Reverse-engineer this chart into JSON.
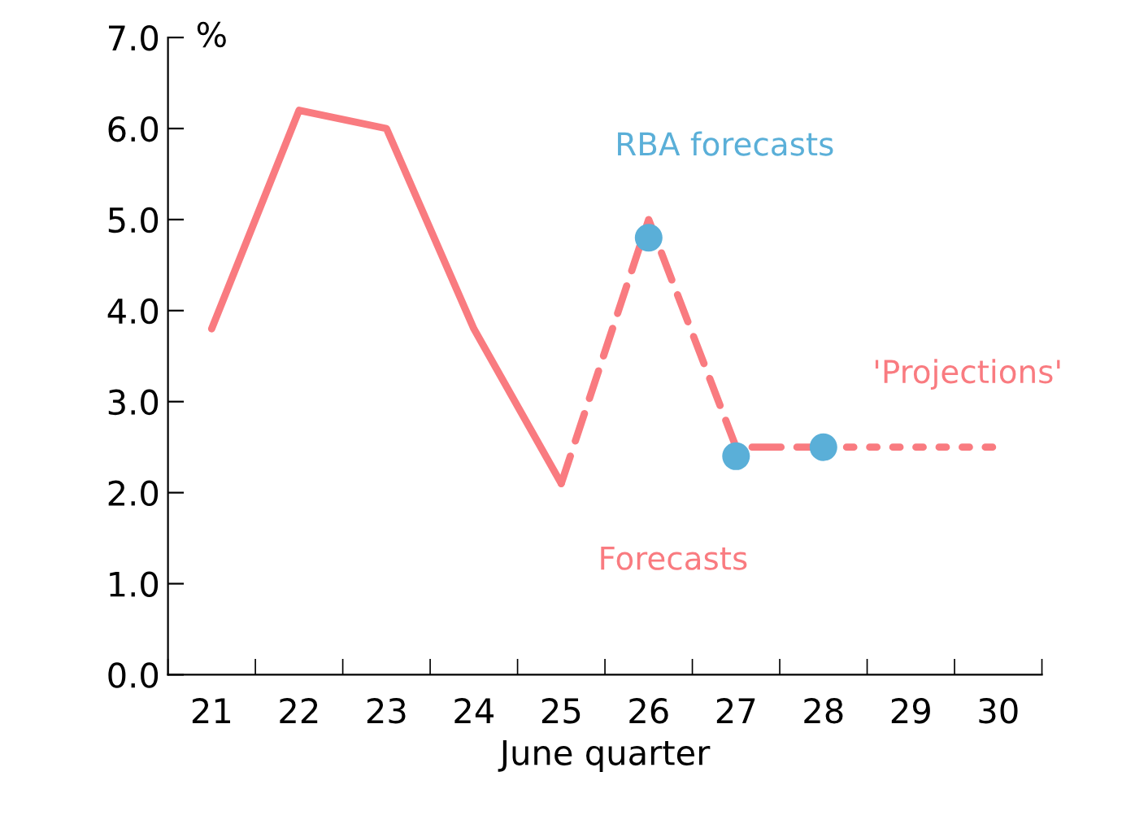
{
  "chart_data": {
    "type": "line",
    "xlabel": "June quarter",
    "ylabel": "%",
    "categories": [
      "21",
      "22",
      "23",
      "24",
      "25",
      "26",
      "27",
      "28",
      "29",
      "30"
    ],
    "series": [
      {
        "color": "#f97b80",
        "line_style": "solid",
        "values": [
          3.8,
          6.2,
          6.0,
          3.8,
          2.1,
          null,
          null,
          null,
          null,
          null
        ]
      },
      {
        "name": "Forecasts",
        "color": "#f97b80",
        "line_style": "dashed",
        "values": [
          null,
          null,
          null,
          null,
          2.1,
          5.0,
          2.5,
          2.5,
          null,
          null
        ]
      },
      {
        "name": "'Projections'",
        "color": "#f97b80",
        "line_style": "dotted",
        "values": [
          null,
          null,
          null,
          null,
          null,
          null,
          null,
          2.5,
          2.5,
          2.5
        ]
      },
      {
        "name": "RBA forecasts",
        "type": "scatter",
        "marker": "circle",
        "color": "#5aafd8",
        "values": [
          null,
          null,
          null,
          null,
          null,
          4.8,
          2.4,
          2.5,
          null,
          null
        ]
      }
    ],
    "ylim": [
      0,
      7
    ],
    "yticks": [
      {
        "value": 0,
        "label": "0.0"
      },
      {
        "value": 1,
        "label": "1.0"
      },
      {
        "value": 2,
        "label": "2.0"
      },
      {
        "value": 3,
        "label": "3.0"
      },
      {
        "value": 4,
        "label": "4.0"
      },
      {
        "value": 5,
        "label": "5.0"
      },
      {
        "value": 6,
        "label": "6.0"
      },
      {
        "value": 7,
        "label": "7.0"
      }
    ],
    "grid": false,
    "legend": false
  }
}
